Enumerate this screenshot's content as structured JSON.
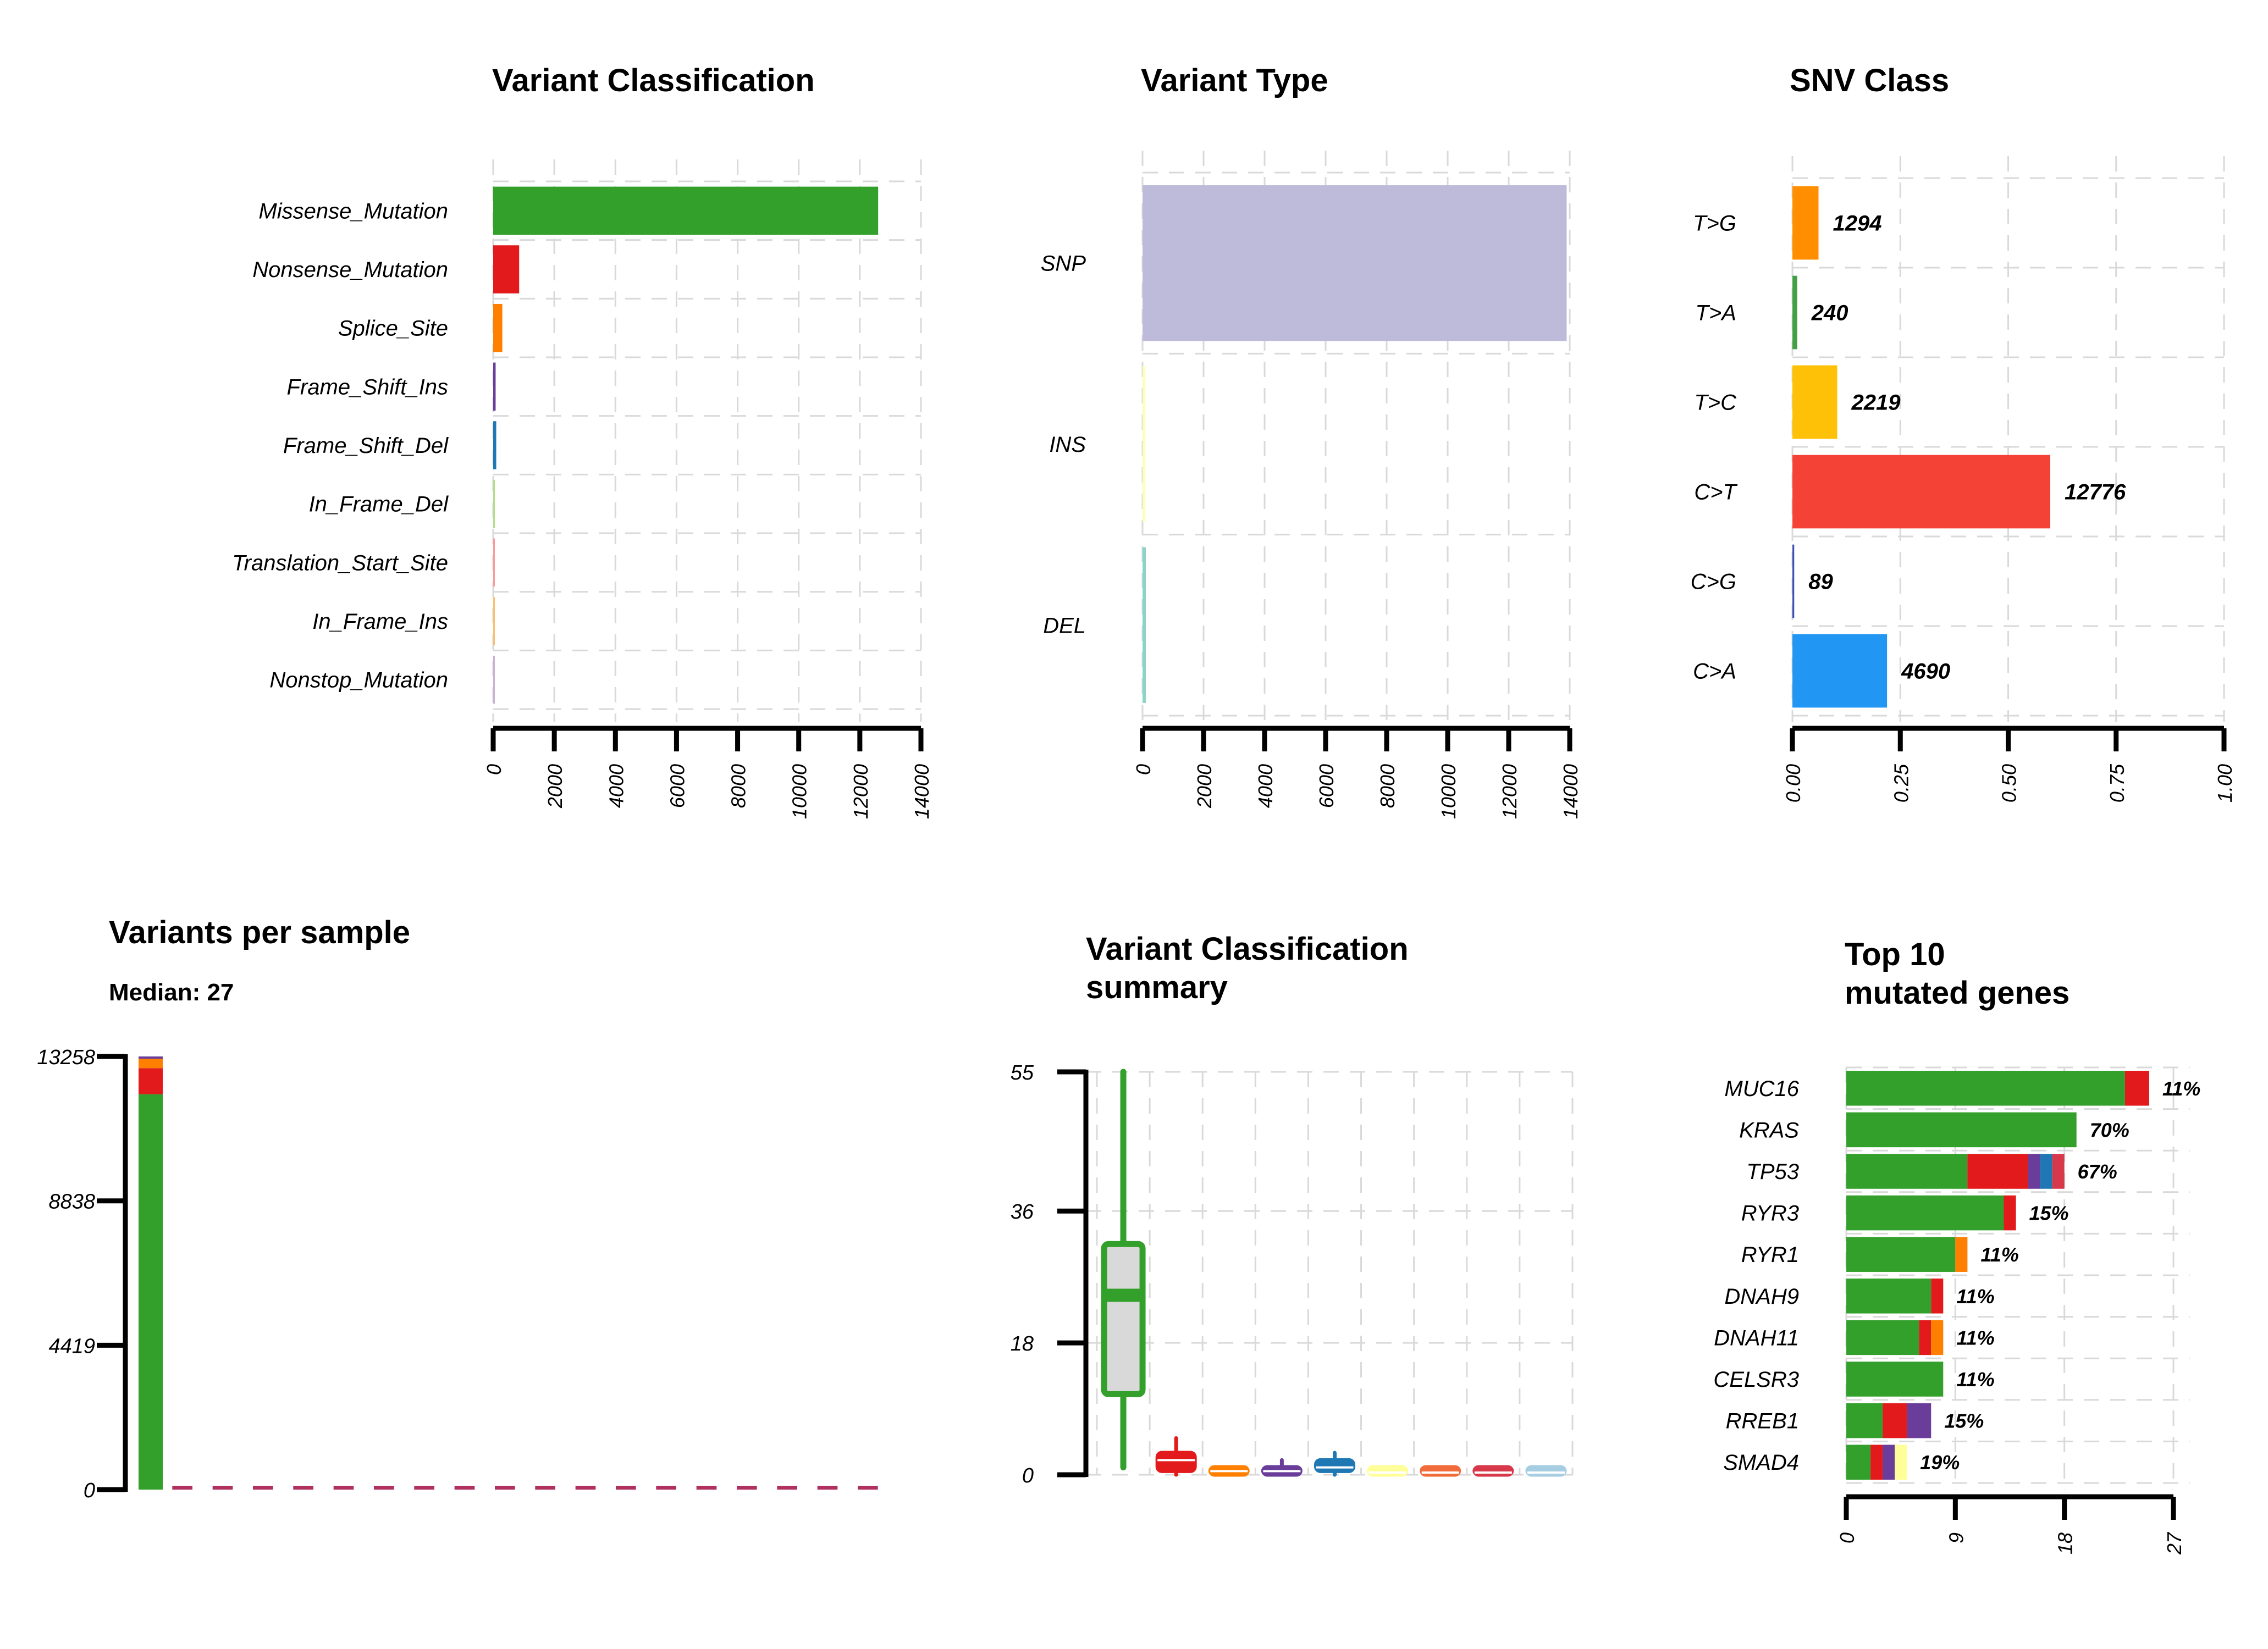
{
  "chart_data": [
    {
      "type": "bar",
      "orientation": "horizontal",
      "title": "Variant Classification",
      "categories": [
        "Missense_Mutation",
        "Nonsense_Mutation",
        "Splice_Site",
        "Frame_Shift_Ins",
        "Frame_Shift_Del",
        "In_Frame_Del",
        "Translation_Start_Site",
        "In_Frame_Ins",
        "Nonstop_Mutation"
      ],
      "values": [
        12600,
        850,
        300,
        80,
        100,
        10,
        5,
        5,
        3
      ],
      "colors": [
        "#33A02C",
        "#E31A1C",
        "#FF7F00",
        "#6A3D9A",
        "#1F78B4",
        "#B2DF8A",
        "#FB9A99",
        "#FDBF6F",
        "#CAB2D6"
      ],
      "xlim": [
        0,
        14000
      ],
      "xticks": [
        "0",
        "2000",
        "4000",
        "6000",
        "8000",
        "10000",
        "12000",
        "14000"
      ],
      "grid": true
    },
    {
      "type": "bar",
      "orientation": "horizontal",
      "title": "Variant Type",
      "categories": [
        "SNP",
        "INS",
        "DEL"
      ],
      "values": [
        13900,
        90,
        110
      ],
      "colors": [
        "#BEBADA",
        "#FFFFB3",
        "#8DD3C7"
      ],
      "xlim": [
        0,
        14000
      ],
      "xticks": [
        "0",
        "2000",
        "4000",
        "6000",
        "8000",
        "10000",
        "12000",
        "14000"
      ],
      "grid": true
    },
    {
      "type": "bar",
      "orientation": "horizontal",
      "title": "SNV Class",
      "categories": [
        "T>G",
        "T>A",
        "T>C",
        "C>T",
        "C>G",
        "C>A"
      ],
      "counts": [
        "1294",
        "240",
        "2219",
        "12776",
        "89",
        "4690"
      ],
      "values": [
        0.0605,
        0.0112,
        0.1038,
        0.5974,
        0.0042,
        0.2193
      ],
      "colors": [
        "#FF8F00",
        "#43A047",
        "#FFC107",
        "#F44336",
        "#3F51B5",
        "#2196F3"
      ],
      "xlim": [
        0,
        1
      ],
      "xticks": [
        "0.00",
        "0.25",
        "0.50",
        "0.75",
        "1.00"
      ],
      "grid": true
    },
    {
      "type": "bar",
      "title": "Variants per sample",
      "subtitle": "Median: 27",
      "yticks": [
        "13258",
        "8838",
        "4419",
        "0"
      ],
      "ylim": [
        0,
        13258
      ],
      "first_sample_stack": [
        {
          "value": 12100,
          "color": "#33A02C"
        },
        {
          "value": 800,
          "color": "#E31A1C"
        },
        {
          "value": 290,
          "color": "#FF7F00"
        },
        {
          "value": 68,
          "color": "#6A3D9A"
        }
      ],
      "remaining_samples_color": "#B03060",
      "remaining_samples_count": 18,
      "remaining_samples_value": 27
    },
    {
      "type": "box",
      "title": "Variant Classification",
      "title_line2": "summary",
      "yticks": [
        "55",
        "36",
        "18",
        "0"
      ],
      "ylim": [
        0,
        55
      ],
      "boxes": [
        {
          "color": "#33A02C",
          "min": 1,
          "q1": 11,
          "median": 24.5,
          "q3": 31.5,
          "max": 55
        },
        {
          "color": "#E31A1C",
          "min": 0,
          "q1": 0.5,
          "median": 2,
          "q3": 3,
          "max": 5
        },
        {
          "color": "#FF7F00",
          "min": 0,
          "q1": 0,
          "median": 0.5,
          "q3": 1,
          "max": 1
        },
        {
          "color": "#6A3D9A",
          "min": 0,
          "q1": 0,
          "median": 0.5,
          "q3": 1,
          "max": 2
        },
        {
          "color": "#1F78B4",
          "min": 0,
          "q1": 0.5,
          "median": 1,
          "q3": 2,
          "max": 3
        },
        {
          "color": "#FFFF99",
          "min": 0,
          "q1": 0,
          "median": 0.3,
          "q3": 0.8,
          "max": 0.8
        },
        {
          "color": "#F26B3A",
          "min": 0,
          "q1": 0,
          "median": 0.3,
          "q3": 0.8,
          "max": 0.8
        },
        {
          "color": "#D7394B",
          "min": 0,
          "q1": 0,
          "median": 0.3,
          "q3": 0.8,
          "max": 0.8
        },
        {
          "color": "#A6CEE3",
          "min": 0,
          "q1": 0,
          "median": 0.3,
          "q3": 0.8,
          "max": 0.8
        }
      ],
      "grid": true
    },
    {
      "type": "bar",
      "orientation": "horizontal",
      "stacked": true,
      "title": "Top 10",
      "title_line2": "mutated genes",
      "categories": [
        "MUC16",
        "KRAS",
        "TP53",
        "RYR3",
        "RYR1",
        "DNAH9",
        "DNAH11",
        "CELSR3",
        "RREB1",
        "SMAD4"
      ],
      "labels": [
        "11%",
        "70%",
        "67%",
        "15%",
        "11%",
        "11%",
        "11%",
        "11%",
        "15%",
        "19%"
      ],
      "segments": [
        [
          {
            "value": 23,
            "color": "#33A02C"
          },
          {
            "value": 2,
            "color": "#E31A1C"
          }
        ],
        [
          {
            "value": 19,
            "color": "#33A02C"
          }
        ],
        [
          {
            "value": 10,
            "color": "#33A02C"
          },
          {
            "value": 5,
            "color": "#E31A1C"
          },
          {
            "value": 1,
            "color": "#6A3D9A"
          },
          {
            "value": 1,
            "color": "#1F78B4"
          },
          {
            "value": 1,
            "color": "#D7394B"
          }
        ],
        [
          {
            "value": 13,
            "color": "#33A02C"
          },
          {
            "value": 1,
            "color": "#E31A1C"
          }
        ],
        [
          {
            "value": 9,
            "color": "#33A02C"
          },
          {
            "value": 1,
            "color": "#FF7F00"
          }
        ],
        [
          {
            "value": 7,
            "color": "#33A02C"
          },
          {
            "value": 1,
            "color": "#E31A1C"
          }
        ],
        [
          {
            "value": 6,
            "color": "#33A02C"
          },
          {
            "value": 1,
            "color": "#E31A1C"
          },
          {
            "value": 1,
            "color": "#FF7F00"
          }
        ],
        [
          {
            "value": 8,
            "color": "#33A02C"
          }
        ],
        [
          {
            "value": 3,
            "color": "#33A02C"
          },
          {
            "value": 2,
            "color": "#E31A1C"
          },
          {
            "value": 2,
            "color": "#6A3D9A"
          }
        ],
        [
          {
            "value": 2,
            "color": "#33A02C"
          },
          {
            "value": 1,
            "color": "#E31A1C"
          },
          {
            "value": 1,
            "color": "#6A3D9A"
          },
          {
            "value": 1,
            "color": "#FFFF99"
          }
        ]
      ],
      "xlim": [
        0,
        27
      ],
      "xticks": [
        "0",
        "9",
        "18",
        "27"
      ],
      "grid": true
    }
  ]
}
